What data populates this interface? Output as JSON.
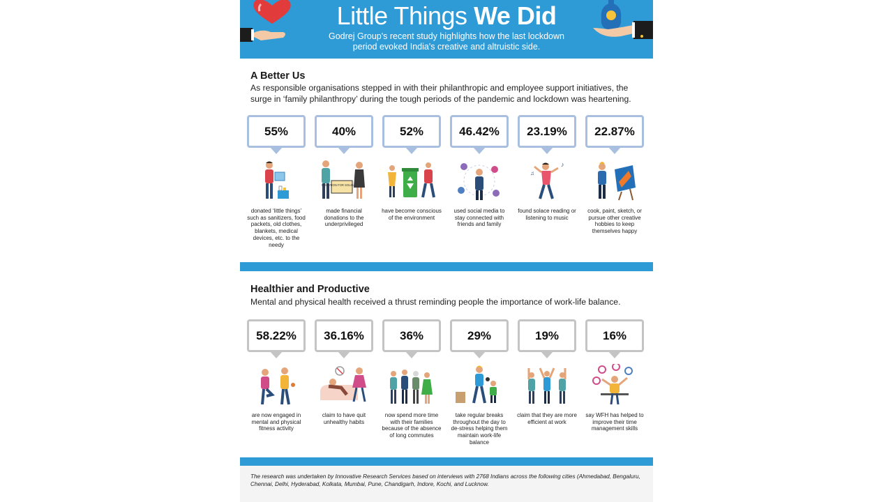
{
  "header": {
    "title_thin": "Little Things",
    "title_bold": "We Did",
    "subtitle": "Godrej Group's recent study highlights how the last lockdown period evoked India's creative and altruistic side.",
    "colors": {
      "band": "#2e9ad6"
    },
    "icons": [
      "heart-in-hand-icon",
      "coin-bag-hand-icon"
    ]
  },
  "section1": {
    "title": "A Better Us",
    "text": "As responsible organisations stepped in with their philanthropic and employee support initiatives, the surge in ‘family philanthropy’ during the tough periods of the pandemic and lockdown was heartening.",
    "stats": [
      {
        "value": "55%",
        "caption": "donated ‘little things’ such as sanitizers, food packets, old clothes, blankets, medical devices, etc. to the needy",
        "icon": "donation-box-person-icon"
      },
      {
        "value": "40%",
        "caption": "made financial donations to the underprivileged",
        "icon": "donation-sign-couple-icon",
        "sign_text": "DONATION FOR SOLIDARITY"
      },
      {
        "value": "52%",
        "caption": "have become conscious of the environment",
        "icon": "recycling-bin-icon"
      },
      {
        "value": "46.42%",
        "caption": "used social media to stay connected with friends and family",
        "icon": "social-network-icon"
      },
      {
        "value": "23.19%",
        "caption": "found solace reading or listening to music",
        "icon": "dancing-music-icon"
      },
      {
        "value": "22.87%",
        "caption": "cook, paint, sketch, or pursue other creative hobbies to keep themselves happy",
        "icon": "painting-easel-icon"
      }
    ]
  },
  "section2": {
    "title": "Healthier and Productive",
    "text": "Mental and physical health received a thrust reminding people the importance of work-life balance.",
    "stats": [
      {
        "value": "58.22%",
        "caption": "are now engaged in mental and physical fitness activity",
        "icon": "yoga-fitness-icon"
      },
      {
        "value": "36.16%",
        "caption": "claim to have quit unhealthy habits",
        "icon": "quit-smoking-couch-icon"
      },
      {
        "value": "36%",
        "caption": "now spend more time with their families because of the absence of long commutes",
        "icon": "family-group-icon"
      },
      {
        "value": "29%",
        "caption": "take regular breaks throughout the day to de-stress helping them maintain work-life balance",
        "icon": "parent-child-play-icon"
      },
      {
        "value": "19%",
        "caption": "claim that they are more efficient at work",
        "icon": "high-five-team-icon"
      },
      {
        "value": "16%",
        "caption": "say WFH has helped to improve their time management skills",
        "icon": "juggling-clocks-icon"
      }
    ]
  },
  "footer": {
    "text": "The research was undertaken by Innovative Research Services based on interviews with 2768 Indians across the following cities (Ahmedabad, Bengaluru, Chennai, Delhi, Hyderabad, Kolkata, Mumbai, Pune, Chandigarh, Indore, Kochi, and Lucknow."
  }
}
